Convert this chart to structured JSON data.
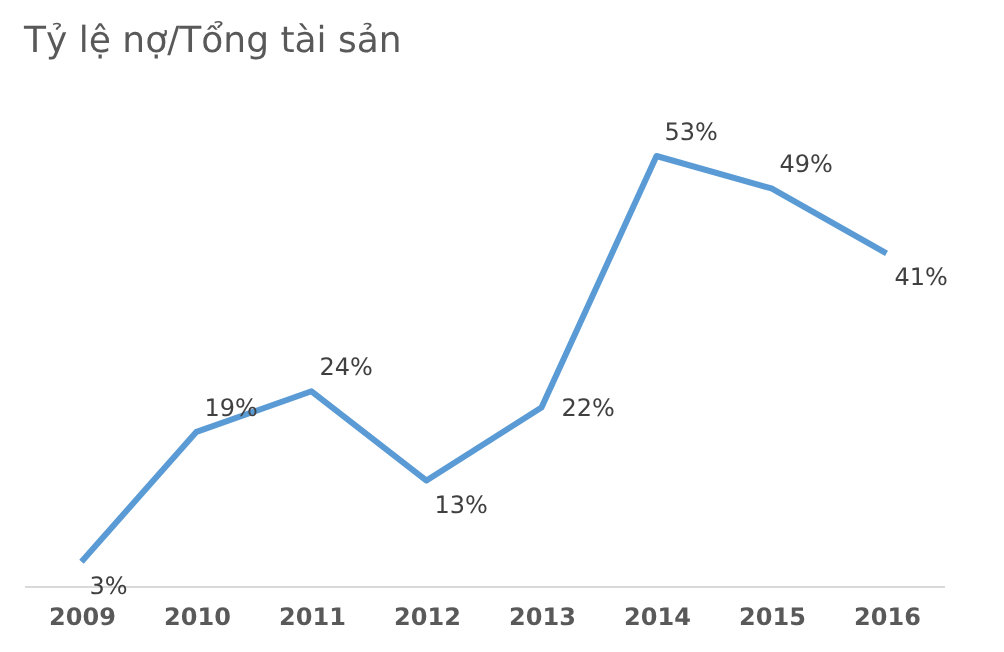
{
  "chart_data": {
    "type": "line",
    "title": "Tỷ lệ nợ/Tổng tài sản",
    "categories": [
      "2009",
      "2010",
      "2011",
      "2012",
      "2013",
      "2014",
      "2015",
      "2016"
    ],
    "series": [
      {
        "color": "#5b9bd5",
        "values": [
          3,
          19,
          24,
          13,
          22,
          53,
          49,
          41
        ],
        "value_labels": [
          "3%",
          "19%",
          "24%",
          "13%",
          "22%",
          "53%",
          "49%",
          "41%"
        ]
      }
    ],
    "grid": false,
    "legend": false,
    "marker": "none",
    "line_style": "solid"
  }
}
